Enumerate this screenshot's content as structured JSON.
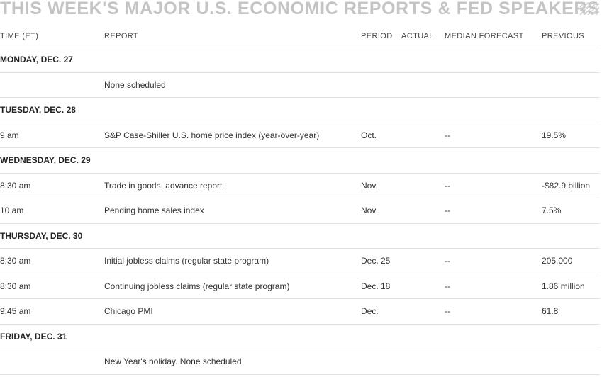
{
  "title": "THIS WEEK'S MAJOR U.S. ECONOMIC REPORTS & FED SPEAKERS",
  "columns": {
    "time": "TIME (ET)",
    "report": "REPORT",
    "period": "PERIOD",
    "actual": "ACTUAL",
    "median": "MEDIAN FORECAST",
    "previous": "PREVIOUS"
  },
  "days": [
    {
      "label": "MONDAY, DEC. 27",
      "rows": [
        {
          "time": "",
          "report": "None scheduled",
          "period": "",
          "actual": "",
          "median": "",
          "previous": ""
        }
      ]
    },
    {
      "label": "TUESDAY, DEC. 28",
      "rows": [
        {
          "time": "9 am",
          "report": "S&P Case-Shiller U.S. home price index (year-over-year)",
          "period": "Oct.",
          "actual": "",
          "median": "--",
          "previous": "19.5%"
        }
      ]
    },
    {
      "label": "WEDNESDAY, DEC. 29",
      "rows": [
        {
          "time": "8:30 am",
          "report": "Trade in goods, advance report",
          "period": "Nov.",
          "actual": "",
          "median": "--",
          "previous": "-$82.9 billion"
        },
        {
          "time": "10 am",
          "report": "Pending home sales index",
          "period": "Nov.",
          "actual": "",
          "median": "--",
          "previous": "7.5%"
        }
      ]
    },
    {
      "label": "THURSDAY, DEC. 30",
      "rows": [
        {
          "time": "8:30 am",
          "report": "Initial jobless claims (regular state program)",
          "period": "Dec. 25",
          "actual": "",
          "median": "--",
          "previous": "205,000"
        },
        {
          "time": "8:30 am",
          "report": "Continuing jobless claims (regular state program)",
          "period": "Dec. 18",
          "actual": "",
          "median": "--",
          "previous": "1.86 million"
        },
        {
          "time": "9:45 am",
          "report": "Chicago PMI",
          "period": "Dec.",
          "actual": "",
          "median": "--",
          "previous": "61.8"
        }
      ]
    },
    {
      "label": "FRIDAY, DEC. 31",
      "rows": [
        {
          "time": "",
          "report": "New Year's holiday. None scheduled",
          "period": "",
          "actual": "",
          "median": "",
          "previous": ""
        }
      ]
    }
  ]
}
